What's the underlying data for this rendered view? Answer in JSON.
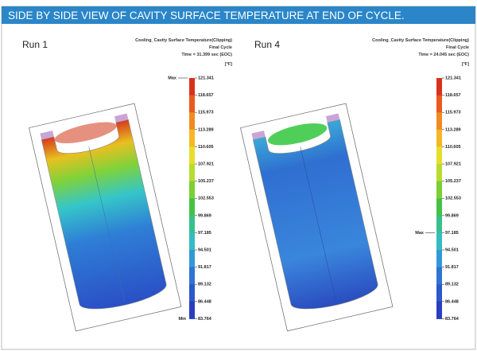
{
  "header": {
    "title": "SIDE BY SIDE VIEW OF CAVITY SURFACE TEMPERATURE AT END OF CYCLE."
  },
  "panels": [
    {
      "label": "Run 1",
      "result_title": "Cooling_Cavity Surface Temperature(Clipping)",
      "subtitle": "Final Cycle",
      "time": "Time = 31.399 sec (EOC)",
      "unit": "[°F]",
      "scale_labels": [
        "121.341",
        "118.657",
        "115.973",
        "113.289",
        "110.605",
        "107.921",
        "105.237",
        "102.553",
        "99.869",
        "97.185",
        "94.501",
        "91.817",
        "89.132",
        "86.448",
        "83.764"
      ],
      "max_label": "Max",
      "min_label": "Min"
    },
    {
      "label": "Run 4",
      "result_title": "Cooling_Cavity Surface Temperature(Clipping)",
      "subtitle": "Final Cycle",
      "time": "Time = 24.045 sec (EOC)",
      "unit": "[°F]",
      "scale_labels": [
        "121.341",
        "118.657",
        "115.973",
        "113.289",
        "110.605",
        "107.921",
        "105.237",
        "102.553",
        "99.869",
        "97.185",
        "94.501",
        "91.817",
        "89.132",
        "86.448",
        "83.764"
      ],
      "max_label": "Max"
    }
  ]
}
